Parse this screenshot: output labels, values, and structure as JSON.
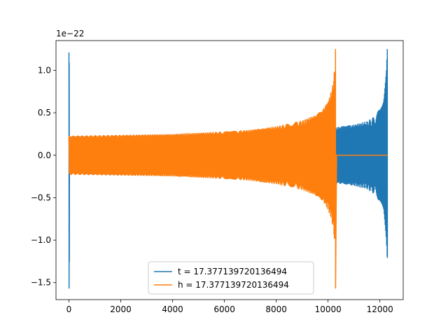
{
  "chart_data": {
    "type": "line",
    "title": "",
    "xlabel": "",
    "ylabel": "",
    "xlim": [
      -500,
      12900
    ],
    "ylim": [
      -1.7,
      1.35
    ],
    "y_offset_text": "1e−22",
    "x_ticks": [
      0,
      2000,
      4000,
      6000,
      8000,
      10000,
      12000
    ],
    "x_tick_labels": [
      "0",
      "2000",
      "4000",
      "6000",
      "8000",
      "10000",
      "12000"
    ],
    "y_ticks": [
      -1.5,
      -1.0,
      -0.5,
      0.0,
      0.5,
      1.0
    ],
    "y_tick_labels": [
      "−1.5",
      "−1.0",
      "−0.5",
      "0.0",
      "0.5",
      "1.0"
    ],
    "grid": false,
    "legend_position": "bottom-center",
    "series": [
      {
        "name": "t = 17.377139720136494",
        "color": "#1f77b4",
        "description_points": {
          "spike_start_x": 0,
          "spike_start_range": [
            -1.57,
            1.21
          ],
          "envelope_x": [
            0,
            2000,
            4000,
            6000,
            8000,
            9000,
            10000,
            10500,
            11000,
            11500,
            11800,
            12000,
            12150,
            12250,
            12290
          ],
          "envelope_amp": [
            0.22,
            0.23,
            0.24,
            0.26,
            0.29,
            0.3,
            0.31,
            0.34,
            0.36,
            0.4,
            0.46,
            0.55,
            0.7,
            1.0,
            1.25
          ],
          "end_x": 12290,
          "end_range": [
            -1.21,
            1.25
          ]
        }
      },
      {
        "name": "h = 17.377139720136494",
        "color": "#ff7f0e",
        "description_points": {
          "envelope_x": [
            0,
            2000,
            4000,
            6000,
            7000,
            8000,
            9000,
            9500,
            9800,
            10000,
            10150,
            10250,
            10290
          ],
          "envelope_amp": [
            0.23,
            0.24,
            0.25,
            0.28,
            0.3,
            0.34,
            0.41,
            0.47,
            0.54,
            0.64,
            0.78,
            1.0,
            1.25
          ],
          "peak_x": 10290,
          "peak_range": [
            -1.57,
            1.25
          ],
          "flat_after_x": [
            10330,
            12290
          ],
          "flat_value": 0.0
        }
      }
    ]
  }
}
